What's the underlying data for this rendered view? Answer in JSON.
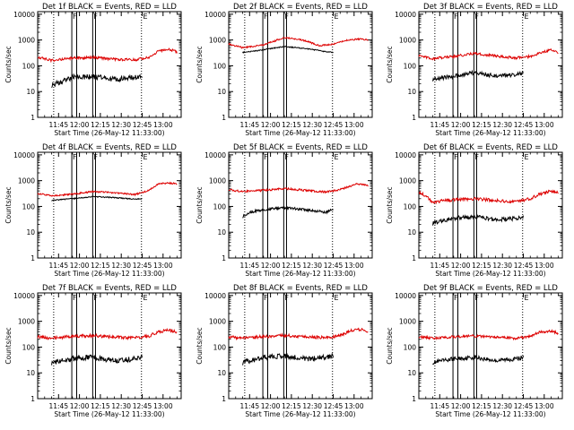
{
  "figure": {
    "x_ticks": [
      "11:45",
      "12:00",
      "12:15",
      "12:30",
      "12:45",
      "13:00"
    ],
    "x_tick_positions_min": [
      0,
      15,
      30,
      45,
      60,
      75
    ],
    "x_label": "Start Time (26-May-12 11:33:00)",
    "y_label": "Counts/sec",
    "y_ticks": [
      "1",
      "10",
      "100",
      "1000",
      "10000"
    ],
    "x_range_min": [
      -15,
      88
    ],
    "y_range_log10": [
      0,
      4.1
    ],
    "colors": {
      "events": "#000000",
      "lld": "#dd0000"
    },
    "vertical_markers": {
      "dotted": [
        -3.5,
        59.5
      ],
      "solid": [
        9.5,
        13,
        24.5,
        26.5
      ],
      "flag_labels": [
        {
          "text": "F",
          "at": 9.5
        },
        {
          "text": "F",
          "at": 24.5
        },
        {
          "text": "E",
          "at": 60
        }
      ]
    }
  },
  "chart_data": [
    {
      "type": "line",
      "title": "Det 1f BLACK = Events, RED = LLD",
      "series": [
        {
          "name": "Events",
          "x": [
            -5,
            10,
            25,
            40,
            55,
            60
          ],
          "values": [
            18,
            35,
            38,
            30,
            35,
            40
          ],
          "noise": 0.1
        },
        {
          "name": "LLD",
          "x": [
            -15,
            -5,
            10,
            25,
            40,
            55,
            65,
            72,
            80,
            85
          ],
          "values": [
            220,
            160,
            200,
            210,
            180,
            170,
            220,
            380,
            430,
            340
          ],
          "noise": 0.05
        }
      ]
    },
    {
      "type": "line",
      "title": "Det 2f BLACK = Events, RED = LLD",
      "series": [
        {
          "name": "Events",
          "x": [
            -5,
            0,
            10,
            25,
            40,
            55,
            60
          ],
          "values": [
            330,
            350,
            420,
            560,
            470,
            350,
            330
          ],
          "noise": 0.02
        },
        {
          "name": "LLD",
          "x": [
            -15,
            -5,
            10,
            25,
            40,
            50,
            60,
            70,
            80,
            85
          ],
          "values": [
            700,
            500,
            650,
            1250,
            950,
            600,
            700,
            1000,
            1100,
            1000
          ],
          "noise": 0.03
        }
      ]
    },
    {
      "type": "line",
      "title": "Det 3f BLACK = Events, RED = LLD",
      "series": [
        {
          "name": "Events",
          "x": [
            -5,
            10,
            25,
            40,
            55,
            60
          ],
          "values": [
            30,
            40,
            55,
            40,
            45,
            50
          ],
          "noise": 0.08
        },
        {
          "name": "LLD",
          "x": [
            -15,
            -5,
            10,
            25,
            40,
            55,
            65,
            75,
            80,
            85
          ],
          "values": [
            250,
            190,
            230,
            300,
            240,
            200,
            230,
            350,
            420,
            320
          ],
          "noise": 0.05
        }
      ]
    },
    {
      "type": "line",
      "title": "Det 4f BLACK = Events, RED = LLD",
      "series": [
        {
          "name": "Events",
          "x": [
            -5,
            0,
            10,
            25,
            40,
            55,
            60
          ],
          "values": [
            170,
            180,
            200,
            240,
            220,
            190,
            200
          ],
          "noise": 0.02
        },
        {
          "name": "LLD",
          "x": [
            -15,
            -5,
            10,
            25,
            40,
            55,
            65,
            72,
            80,
            85
          ],
          "values": [
            320,
            260,
            300,
            380,
            340,
            290,
            420,
            780,
            800,
            760
          ],
          "noise": 0.03
        }
      ]
    },
    {
      "type": "line",
      "title": "Det 5f BLACK = Events, RED = LLD",
      "series": [
        {
          "name": "Events",
          "x": [
            -5,
            0,
            10,
            25,
            40,
            55,
            60
          ],
          "values": [
            40,
            60,
            75,
            90,
            75,
            60,
            80
          ],
          "noise": 0.05
        },
        {
          "name": "LLD",
          "x": [
            -15,
            -5,
            10,
            25,
            40,
            55,
            65,
            75,
            80,
            85
          ],
          "values": [
            450,
            380,
            420,
            500,
            420,
            360,
            450,
            700,
            750,
            620
          ],
          "noise": 0.04
        }
      ]
    },
    {
      "type": "line",
      "title": "Det 6f BLACK = Events, RED = LLD",
      "series": [
        {
          "name": "Events",
          "x": [
            -5,
            10,
            25,
            40,
            55,
            60
          ],
          "values": [
            22,
            35,
            40,
            30,
            35,
            40
          ],
          "noise": 0.08
        },
        {
          "name": "LLD",
          "x": [
            -15,
            -5,
            10,
            25,
            40,
            55,
            65,
            72,
            80,
            85
          ],
          "values": [
            380,
            150,
            180,
            200,
            170,
            150,
            200,
            300,
            400,
            330
          ],
          "noise": 0.06
        }
      ]
    },
    {
      "type": "line",
      "title": "Det 7f BLACK = Events, RED = LLD",
      "series": [
        {
          "name": "Events",
          "x": [
            -5,
            10,
            25,
            40,
            55,
            60
          ],
          "values": [
            25,
            35,
            40,
            30,
            35,
            40
          ],
          "noise": 0.1
        },
        {
          "name": "LLD",
          "x": [
            -15,
            -5,
            10,
            25,
            40,
            55,
            65,
            72,
            80,
            85
          ],
          "values": [
            250,
            220,
            260,
            280,
            240,
            230,
            270,
            400,
            450,
            380
          ],
          "noise": 0.06
        }
      ]
    },
    {
      "type": "line",
      "title": "Det 8f BLACK = Events, RED = LLD",
      "series": [
        {
          "name": "Events",
          "x": [
            -5,
            10,
            25,
            40,
            55,
            60
          ],
          "values": [
            25,
            40,
            45,
            35,
            40,
            45
          ],
          "noise": 0.1
        },
        {
          "name": "LLD",
          "x": [
            -15,
            -5,
            10,
            25,
            40,
            55,
            65,
            72,
            80,
            85
          ],
          "values": [
            250,
            220,
            260,
            280,
            250,
            230,
            280,
            420,
            480,
            400
          ],
          "noise": 0.06
        }
      ]
    },
    {
      "type": "line",
      "title": "Det 9f BLACK = Events, RED = LLD",
      "series": [
        {
          "name": "Events",
          "x": [
            -5,
            10,
            25,
            40,
            55,
            60
          ],
          "values": [
            25,
            35,
            40,
            30,
            35,
            40
          ],
          "noise": 0.08
        },
        {
          "name": "LLD",
          "x": [
            -15,
            -5,
            10,
            25,
            40,
            55,
            65,
            72,
            80,
            85
          ],
          "values": [
            250,
            220,
            250,
            270,
            240,
            220,
            260,
            380,
            420,
            350
          ],
          "noise": 0.05
        }
      ]
    }
  ]
}
